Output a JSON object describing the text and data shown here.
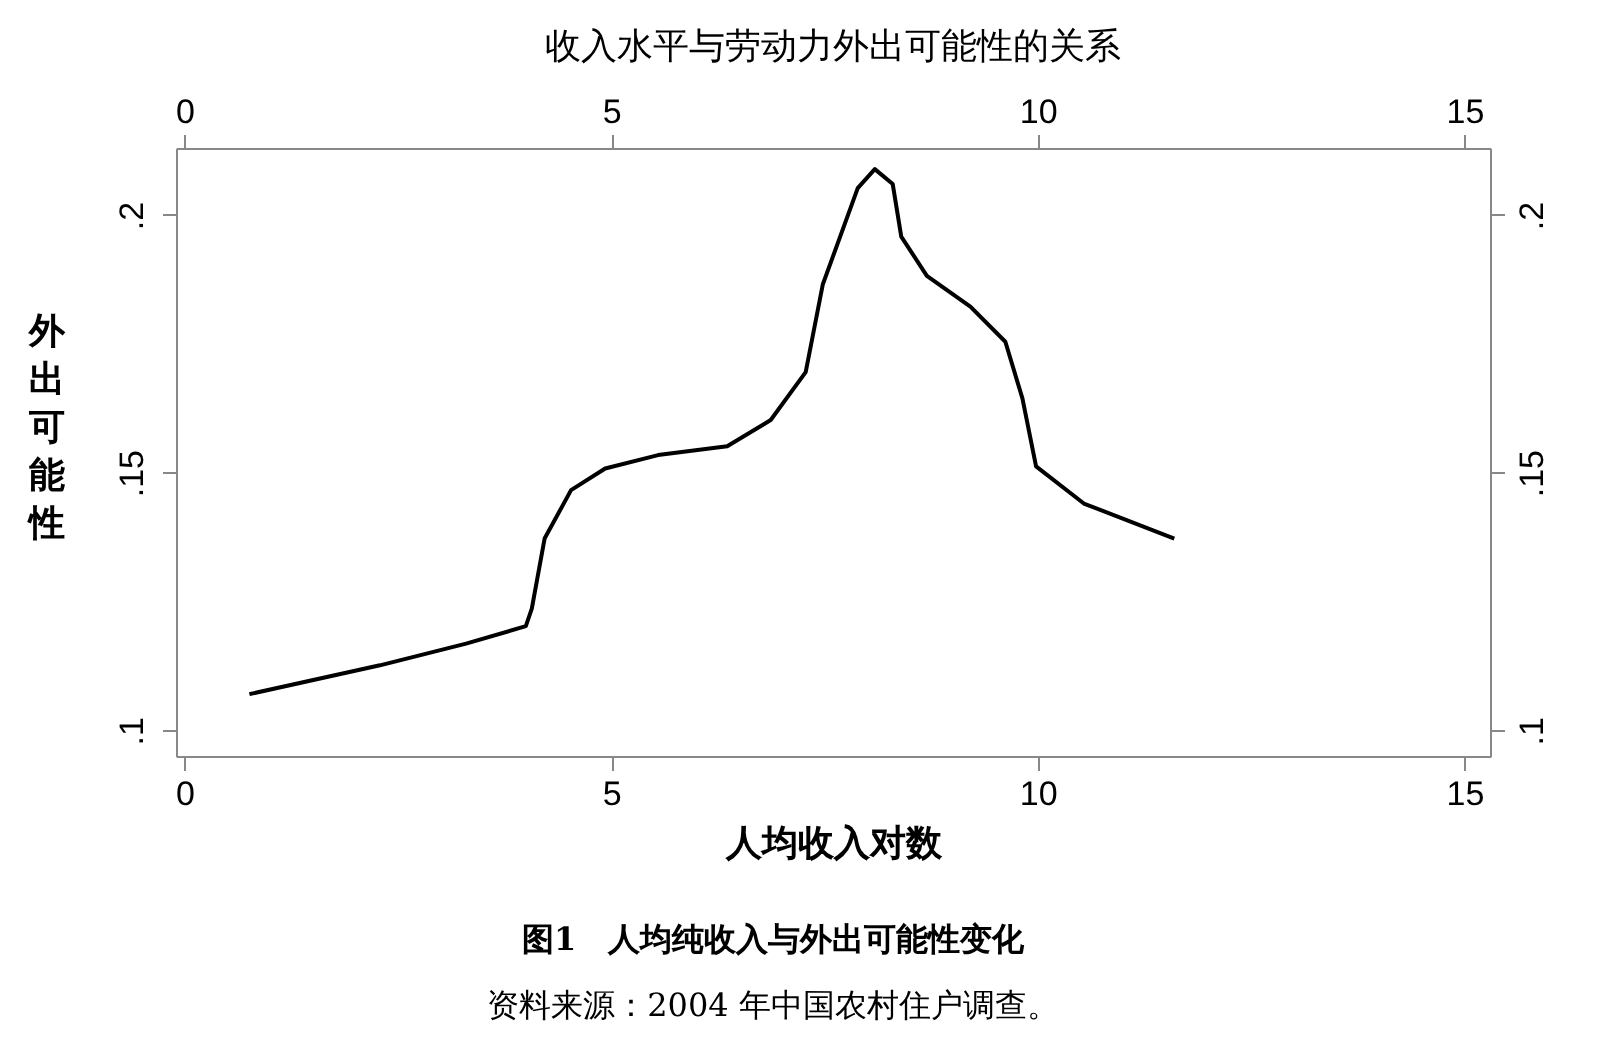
{
  "chart_data": {
    "type": "line",
    "title": "收入水平与劳动力外出可能性的关系",
    "xlabel": "人均收入对数",
    "ylabel": "外出可能性",
    "x": [
      0.76,
      2.29,
      3.3,
      4.0,
      4.07,
      4.22,
      4.53,
      4.93,
      5.55,
      6.36,
      6.87,
      7.28,
      7.48,
      7.89,
      8.09,
      8.3,
      8.4,
      8.7,
      9.21,
      9.62,
      9.82,
      9.98,
      10.54,
      11.6
    ],
    "series": [
      {
        "color": "#000000",
        "values": [
          0.107,
          0.1126,
          0.1168,
          0.1202,
          0.1236,
          0.1372,
          0.1466,
          0.1508,
          0.1534,
          0.1551,
          0.1602,
          0.1695,
          0.1865,
          0.2052,
          0.2089,
          0.206,
          0.1958,
          0.1882,
          0.1822,
          0.1754,
          0.1644,
          0.1512,
          0.144,
          0.1372
        ]
      }
    ],
    "xlim": [
      -0.1,
      15.3
    ],
    "xticks": [
      0,
      5,
      10,
      15
    ],
    "x2lim": [
      -0.1,
      15.3
    ],
    "x2ticks": [
      0,
      5,
      10,
      15
    ],
    "ylim": [
      0.095,
      0.213
    ],
    "yticks": [
      {
        "value": 0.1,
        "label": ".1"
      },
      {
        "value": 0.15,
        "label": ".15"
      },
      {
        "value": 0.2,
        "label": ".2"
      }
    ],
    "y2lim": [
      0.095,
      0.213
    ],
    "y2ticks": [
      {
        "value": 0.1,
        "label": ".1"
      },
      {
        "value": 0.15,
        "label": ".15"
      },
      {
        "value": 0.2,
        "label": ".2"
      }
    ],
    "grid": false,
    "legend": false,
    "marker": "none",
    "line_style": "solid",
    "annotations": [
      "图1　人均纯收入与外出可能性变化",
      "资料来源：2004 年中国农村住户调查。"
    ]
  }
}
